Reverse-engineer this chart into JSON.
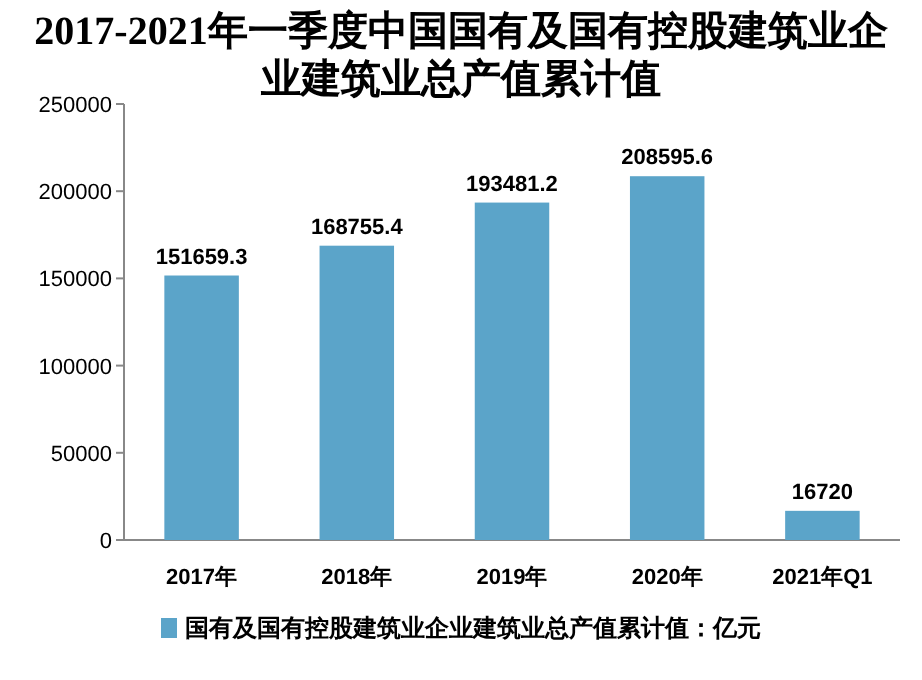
{
  "chart_data": {
    "type": "bar",
    "title": "2017-2021年一季度中国国有及国有控股建筑业企业建筑业总产值累计值",
    "categories": [
      "2017年",
      "2018年",
      "2019年",
      "2020年",
      "2021年Q1"
    ],
    "series": [
      {
        "name": "国有及国有控股建筑业企业建筑业总产值累计值：亿元",
        "color": "#5ba4c9",
        "values": [
          151659.3,
          168755.4,
          193481.2,
          208595.6,
          16720
        ]
      }
    ],
    "ylim": [
      0,
      250000
    ],
    "yticks": [
      0,
      50000,
      100000,
      150000,
      200000,
      250000
    ],
    "data_labels": true,
    "legend": "bottom",
    "grid": false
  }
}
